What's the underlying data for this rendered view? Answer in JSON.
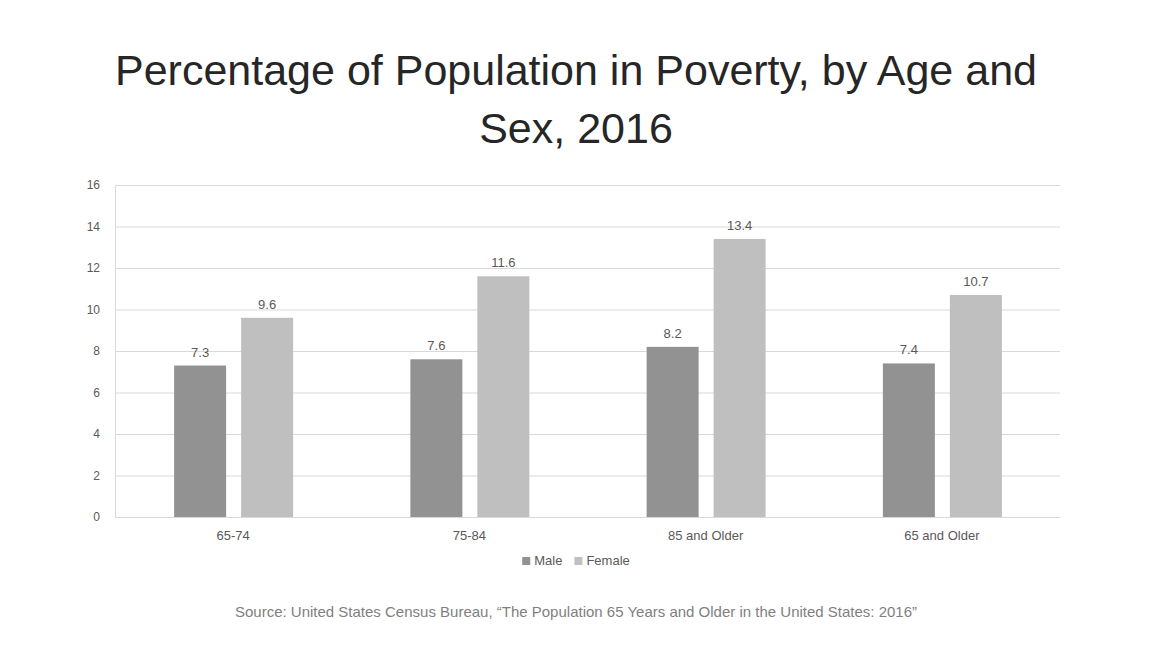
{
  "chart_data": {
    "type": "bar",
    "title": "Percentage of Population in Poverty, by Age and Sex, 2016",
    "categories": [
      "65-74",
      "75-84",
      "85 and Older",
      "65 and Older"
    ],
    "series": [
      {
        "name": "Male",
        "color": "#929292",
        "values": [
          7.3,
          7.6,
          8.2,
          7.4
        ]
      },
      {
        "name": "Female",
        "color": "#bfbfbf",
        "values": [
          9.6,
          11.6,
          13.4,
          10.7
        ]
      }
    ],
    "ylim": [
      0,
      16
    ],
    "yticks": [
      0,
      2,
      4,
      6,
      8,
      10,
      12,
      14,
      16
    ],
    "grid": true,
    "data_labels": true,
    "legend": "bottom",
    "annotations": [
      "Source: United States Census Bureau, “The Population 65 Years and Older in the United States: 2016”"
    ]
  }
}
